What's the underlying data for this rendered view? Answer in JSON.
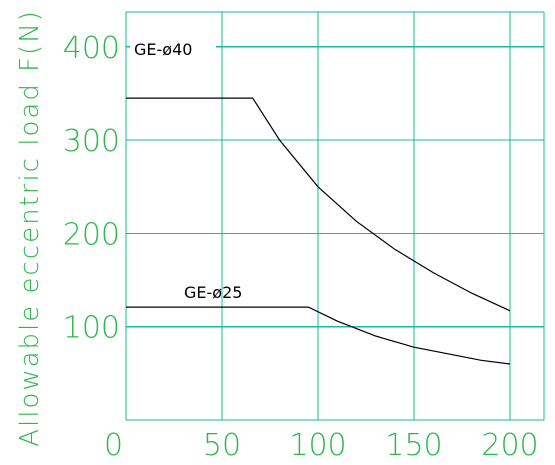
{
  "chart_data": {
    "type": "line",
    "ylabel": "Allowable  eccentric  load  F(N)",
    "xlim": [
      0,
      200
    ],
    "ylim": [
      0,
      400
    ],
    "x_ticks": [
      0,
      50,
      100,
      150,
      200
    ],
    "y_ticks": [
      100,
      200,
      300,
      400
    ],
    "grid": true,
    "colors": {
      "grid": "#19b9a3",
      "text": "#2db84a",
      "series": "#000000"
    },
    "series": [
      {
        "name": "GE-ø40",
        "x": [
          0,
          66,
          80,
          100,
          120,
          140,
          160,
          180,
          200
        ],
        "y": [
          345,
          345,
          300,
          250,
          213,
          183,
          158,
          136,
          117
        ]
      },
      {
        "name": "GE-ø25",
        "x": [
          0,
          95,
          110,
          130,
          150,
          170,
          185,
          200
        ],
        "y": [
          121,
          121,
          106,
          90,
          78,
          70,
          64,
          60
        ]
      }
    ]
  }
}
